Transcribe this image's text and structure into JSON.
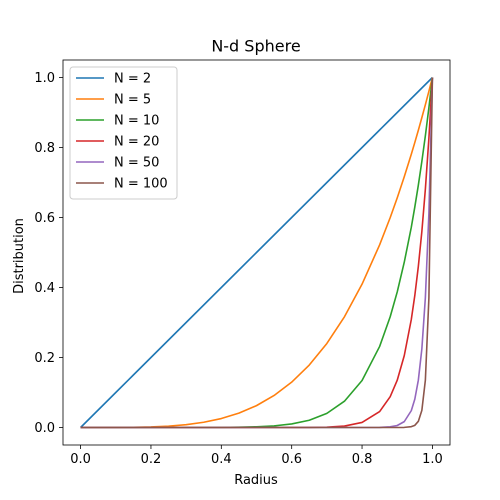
{
  "chart_data": {
    "type": "line",
    "title": "N-d Sphere",
    "xlabel": "Radius",
    "ylabel": "Distribution",
    "xlim": [
      -0.05,
      1.05
    ],
    "ylim": [
      -0.05,
      1.05
    ],
    "x_ticks": [
      0.0,
      0.2,
      0.4,
      0.6,
      0.8,
      1.0
    ],
    "y_ticks": [
      0.0,
      0.2,
      0.4,
      0.6,
      0.8,
      1.0
    ],
    "x_tick_labels": [
      "0.0",
      "0.2",
      "0.4",
      "0.6",
      "0.8",
      "1.0"
    ],
    "y_tick_labels": [
      "0.0",
      "0.2",
      "0.4",
      "0.6",
      "0.8",
      "1.0"
    ],
    "grid": false,
    "legend_position": "top-left",
    "x": [
      0.0,
      0.05,
      0.1,
      0.15,
      0.2,
      0.25,
      0.3,
      0.35,
      0.4,
      0.45,
      0.5,
      0.55,
      0.6,
      0.65,
      0.7,
      0.75,
      0.8,
      0.85,
      0.88,
      0.9,
      0.92,
      0.94,
      0.95,
      0.96,
      0.97,
      0.98,
      0.99,
      1.0
    ],
    "series": [
      {
        "name": "N = 2",
        "color": "#1f77b4",
        "values": [
          0.0,
          0.05,
          0.1,
          0.15,
          0.2,
          0.25,
          0.3,
          0.35,
          0.4,
          0.45,
          0.5,
          0.55,
          0.6,
          0.65,
          0.7,
          0.75,
          0.8,
          0.85,
          0.88,
          0.9,
          0.92,
          0.94,
          0.95,
          0.96,
          0.97,
          0.98,
          0.99,
          1.0
        ]
      },
      {
        "name": "N = 5",
        "color": "#ff7f0e",
        "values": [
          0.0,
          0.0,
          0.0001,
          0.0005,
          0.0016,
          0.0039,
          0.0081,
          0.015,
          0.0256,
          0.041,
          0.0625,
          0.0915,
          0.1296,
          0.1785,
          0.2401,
          0.3164,
          0.4096,
          0.522,
          0.5997,
          0.6561,
          0.7164,
          0.7807,
          0.8145,
          0.8493,
          0.8853,
          0.9224,
          0.9606,
          1.0
        ]
      },
      {
        "name": "N = 10",
        "color": "#2ca02c",
        "values": [
          0.0,
          0.0,
          0.0,
          0.0,
          0.0,
          0.0,
          0.0,
          0.0001,
          0.0003,
          0.0008,
          0.002,
          0.0046,
          0.0101,
          0.0207,
          0.0404,
          0.0751,
          0.1342,
          0.2316,
          0.3165,
          0.3874,
          0.4722,
          0.5721,
          0.6302,
          0.6925,
          0.7602,
          0.8337,
          0.9135,
          1.0
        ]
      },
      {
        "name": "N = 20",
        "color": "#d62728",
        "values": [
          0.0,
          0.0,
          0.0,
          0.0,
          0.0,
          0.0,
          0.0,
          0.0,
          0.0,
          0.0,
          0.0,
          0.0,
          0.0001,
          0.0003,
          0.0011,
          0.0042,
          0.0144,
          0.0456,
          0.0881,
          0.1351,
          0.2053,
          0.3086,
          0.3774,
          0.4604,
          0.5599,
          0.6812,
          0.8262,
          1.0
        ]
      },
      {
        "name": "N = 50",
        "color": "#9467bd",
        "values": [
          0.0,
          0.0,
          0.0,
          0.0,
          0.0,
          0.0,
          0.0,
          0.0,
          0.0,
          0.0,
          0.0,
          0.0,
          0.0,
          0.0,
          0.0,
          0.0,
          0.0,
          0.0003,
          0.0019,
          0.0057,
          0.0168,
          0.0482,
          0.081,
          0.1353,
          0.2245,
          0.3712,
          0.6111,
          1.0
        ]
      },
      {
        "name": "N = 100",
        "color": "#8c564b",
        "values": [
          0.0,
          0.0,
          0.0,
          0.0,
          0.0,
          0.0,
          0.0,
          0.0,
          0.0,
          0.0,
          0.0,
          0.0,
          0.0,
          0.0,
          0.0,
          0.0,
          0.0,
          0.0,
          0.0,
          0.0,
          0.0003,
          0.0024,
          0.0062,
          0.0176,
          0.0488,
          0.1353,
          0.3697,
          1.0
        ]
      }
    ]
  }
}
